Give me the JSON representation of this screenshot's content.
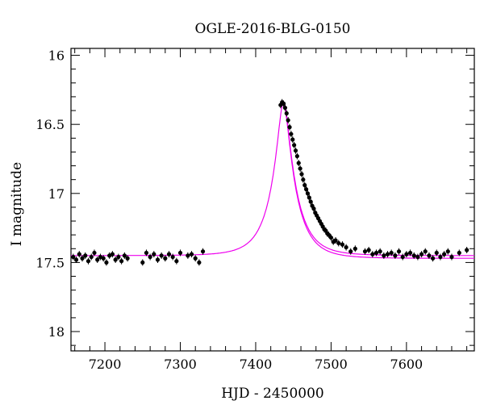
{
  "chart_data": {
    "type": "scatter",
    "title": "OGLE-2016-BLG-0150",
    "xlabel": "HJD - 2450000",
    "ylabel": "I magnitude",
    "xlim": [
      7155,
      7690
    ],
    "ylim": [
      18.14,
      15.95
    ],
    "y_inverted": true,
    "x_ticks": [
      7200,
      7300,
      7400,
      7500,
      7600
    ],
    "y_ticks": [
      16,
      16.5,
      17,
      17.5,
      18
    ],
    "x_tick_labels": [
      "7200",
      "7300",
      "7400",
      "7500",
      "7600"
    ],
    "y_tick_labels": [
      "16",
      "16.5",
      "17",
      "17.5",
      "18"
    ],
    "grid": false,
    "legend": "none",
    "series": [
      {
        "kind": "points-with-errorbars",
        "color": "#000000",
        "x": [
          7158,
          7162,
          7166,
          7170,
          7174,
          7178,
          7182,
          7186,
          7190,
          7194,
          7198,
          7202,
          7206,
          7210,
          7214,
          7218,
          7222,
          7226,
          7230,
          7250,
          7255,
          7260,
          7265,
          7270,
          7275,
          7280,
          7285,
          7290,
          7295,
          7300,
          7310,
          7315,
          7320,
          7325,
          7330,
          7433,
          7435,
          7437,
          7439,
          7441,
          7443,
          7445,
          7447,
          7449,
          7451,
          7453,
          7455,
          7457,
          7459,
          7461,
          7463,
          7465,
          7467,
          7469,
          7471,
          7473,
          7475,
          7477,
          7479,
          7481,
          7483,
          7485,
          7487,
          7489,
          7491,
          7493,
          7495,
          7497,
          7500,
          7503,
          7506,
          7510,
          7515,
          7520,
          7526,
          7532,
          7545,
          7550,
          7555,
          7560,
          7565,
          7570,
          7575,
          7580,
          7585,
          7590,
          7595,
          7600,
          7605,
          7610,
          7615,
          7620,
          7625,
          7630,
          7635,
          7640,
          7645,
          7650,
          7655,
          7660,
          7670,
          7680
        ],
        "y": [
          17.46,
          17.48,
          17.44,
          17.47,
          17.45,
          17.49,
          17.46,
          17.43,
          17.48,
          17.46,
          17.47,
          17.5,
          17.45,
          17.44,
          17.48,
          17.46,
          17.49,
          17.45,
          17.47,
          17.5,
          17.43,
          17.46,
          17.44,
          17.48,
          17.45,
          17.47,
          17.44,
          17.46,
          17.49,
          17.43,
          17.45,
          17.44,
          17.47,
          17.5,
          17.42,
          16.36,
          16.34,
          16.35,
          16.38,
          16.42,
          16.47,
          16.52,
          16.57,
          16.61,
          16.65,
          16.69,
          16.73,
          16.78,
          16.82,
          16.86,
          16.9,
          16.94,
          16.97,
          17.0,
          17.03,
          17.06,
          17.09,
          17.11,
          17.14,
          17.16,
          17.18,
          17.2,
          17.22,
          17.24,
          17.26,
          17.27,
          17.29,
          17.3,
          17.32,
          17.35,
          17.34,
          17.36,
          17.37,
          17.39,
          17.42,
          17.4,
          17.42,
          17.41,
          17.44,
          17.43,
          17.42,
          17.45,
          17.44,
          17.43,
          17.45,
          17.42,
          17.46,
          17.44,
          17.43,
          17.45,
          17.46,
          17.44,
          17.42,
          17.45,
          17.47,
          17.43,
          17.46,
          17.44,
          17.42,
          17.46,
          17.43,
          17.41
        ]
      },
      {
        "kind": "model-curve",
        "color": "#ee00ee",
        "model": "single-lens",
        "peak_x": 7437,
        "peak_y": 16.34,
        "baseline_left": 17.45,
        "baseline_right": 17.47
      }
    ]
  }
}
